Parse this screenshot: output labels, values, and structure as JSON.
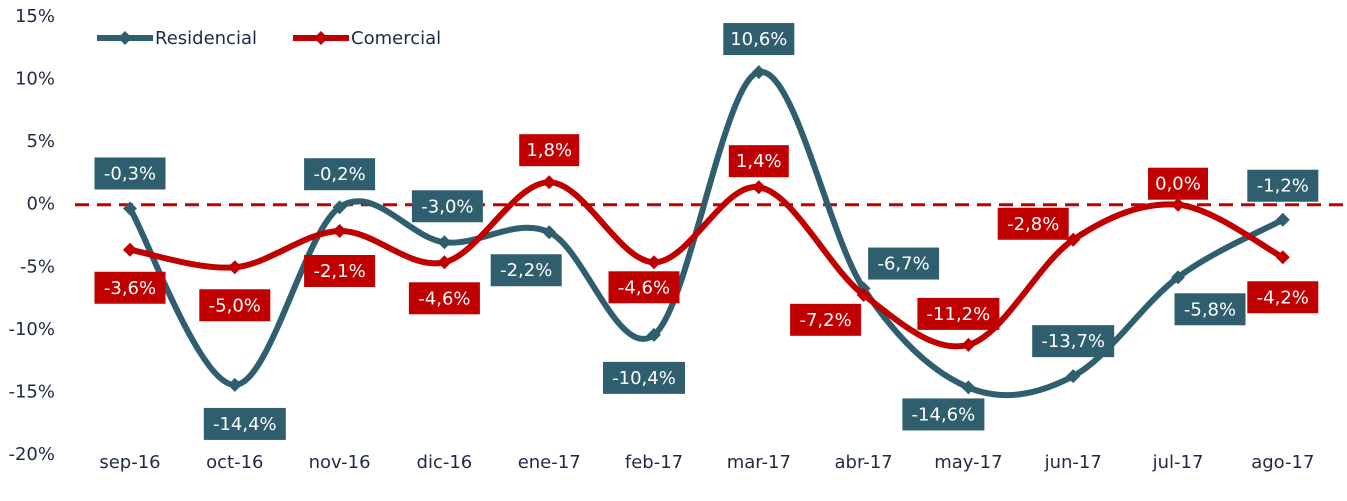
{
  "chart_data": {
    "type": "line",
    "categories": [
      "sep-16",
      "oct-16",
      "nov-16",
      "dic-16",
      "ene-17",
      "feb-17",
      "mar-17",
      "abr-17",
      "may-17",
      "jun-17",
      "jul-17",
      "ago-17"
    ],
    "series": [
      {
        "name": "Residencial",
        "color": "#2f5f6e",
        "values": [
          -0.3,
          -14.4,
          -0.2,
          -3.0,
          -2.2,
          -10.4,
          10.6,
          -6.7,
          -14.6,
          -13.7,
          -5.8,
          -1.2
        ],
        "value_labels": [
          "-0,3%",
          "-14,4%",
          "-0,2%",
          "-3,0%",
          "-2,2%",
          "-10,4%",
          "10,6%",
          "-6,7%",
          "-14,6%",
          "-13,7%",
          "-5,8%",
          "-1,2%"
        ]
      },
      {
        "name": "Comercial",
        "color": "#c00000",
        "values": [
          -3.6,
          -5.0,
          -2.1,
          -4.6,
          1.8,
          -4.6,
          1.4,
          -7.2,
          -11.2,
          -2.8,
          0.0,
          -4.2
        ],
        "value_labels": [
          "-3,6%",
          "-5,0%",
          "-2,1%",
          "-4,6%",
          "1,8%",
          "-4,6%",
          "1,4%",
          "-7,2%",
          "-11,2%",
          "-2,8%",
          "0,0%",
          "-4,2%"
        ]
      }
    ],
    "ylim": [
      -20,
      15
    ],
    "yticks": [
      {
        "value": -20,
        "label": "-20%"
      },
      {
        "value": -15,
        "label": "-15%"
      },
      {
        "value": -10,
        "label": "-10%"
      },
      {
        "value": -5,
        "label": "-5%"
      },
      {
        "value": 0,
        "label": "0%"
      },
      {
        "value": 5,
        "label": "5%"
      },
      {
        "value": 10,
        "label": "10%"
      },
      {
        "value": 15,
        "label": "15%"
      }
    ],
    "reference_line": {
      "value": 0,
      "color": "#c00000",
      "dashed": true
    },
    "legend": "top-left"
  }
}
